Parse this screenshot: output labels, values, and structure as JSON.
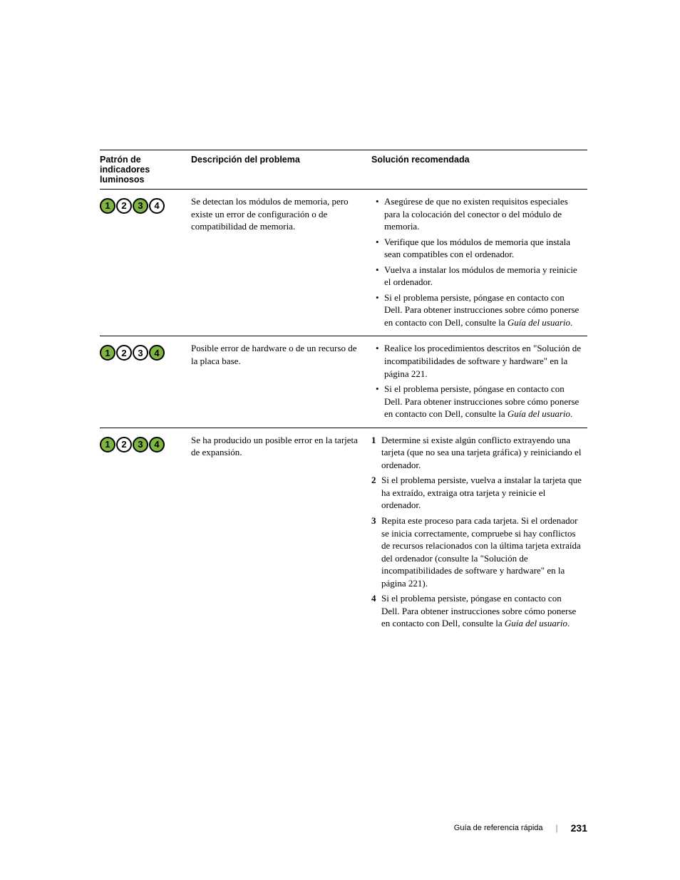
{
  "colors": {
    "light_on": "#7fb642",
    "light_off": "#ffffff",
    "border": "#000000",
    "text": "#000000",
    "bg": "#ffffff"
  },
  "headers": {
    "col1_line1": "Patrón de",
    "col1_line2": "indicadores",
    "col1_line3": "luminosos",
    "col2": "Descripción del problema",
    "col3": "Solución recomendada"
  },
  "rows": [
    {
      "pattern": [
        true,
        false,
        true,
        false
      ],
      "description": "Se detectan los módulos de memoria, pero existe un error de configuración o de compatibilidad de memoria.",
      "solution_type": "ul",
      "solution": [
        {
          "text": "Asegúrese de que no existen requisitos especiales para la colocación del conector o del módulo de memoria."
        },
        {
          "text": "Verifique que los módulos de memoria que instala sean compatibles con el ordenador."
        },
        {
          "text": "Vuelva a instalar los módulos de memoria y reinicie el ordenador."
        },
        {
          "text": "Si el problema persiste, póngase en contacto con Dell. Para obtener instrucciones sobre cómo ponerse en contacto con Dell, consulte la ",
          "italic": "Guía del usuario",
          "after": "."
        }
      ]
    },
    {
      "pattern": [
        true,
        false,
        false,
        true
      ],
      "description": "Posible error de hardware o de un recurso de la placa base.",
      "solution_type": "ul",
      "solution": [
        {
          "text": "Realice los procedimientos descritos en \"Solución de incompatibilidades de software y hardware\" en la página 221."
        },
        {
          "text": "Si el problema persiste, póngase en contacto con Dell. Para obtener instrucciones sobre cómo ponerse en contacto con Dell, consulte la ",
          "italic": "Guía del usuario",
          "after": "."
        }
      ]
    },
    {
      "pattern": [
        true,
        false,
        true,
        true
      ],
      "description": "Se ha producido un posible error en la tarjeta de expansión.",
      "solution_type": "ol",
      "solution": [
        {
          "num": "1",
          "text": "Determine si existe algún conflicto extrayendo una tarjeta (que no sea una tarjeta gráfica) y reiniciando el ordenador."
        },
        {
          "num": "2",
          "text": "Si el problema persiste, vuelva a instalar la tarjeta que ha extraído, extraiga otra tarjeta y reinicie el ordenador."
        },
        {
          "num": "3",
          "text": "Repita este proceso para cada tarjeta. Si el ordenador se inicia correctamente, compruebe si hay conflictos de recursos relacionados con la última tarjeta extraída del ordenador (consulte la \"Solución de incompatibilidades de software y hardware\" en la página 221)."
        },
        {
          "num": "4",
          "text": "Si el problema persiste, póngase en contacto con Dell. Para obtener instrucciones sobre cómo ponerse en contacto con Dell, consulte la ",
          "italic": "Guía del usuario",
          "after": "."
        }
      ]
    }
  ],
  "footer": {
    "title": "Guía de referencia rápida",
    "page": "231"
  }
}
